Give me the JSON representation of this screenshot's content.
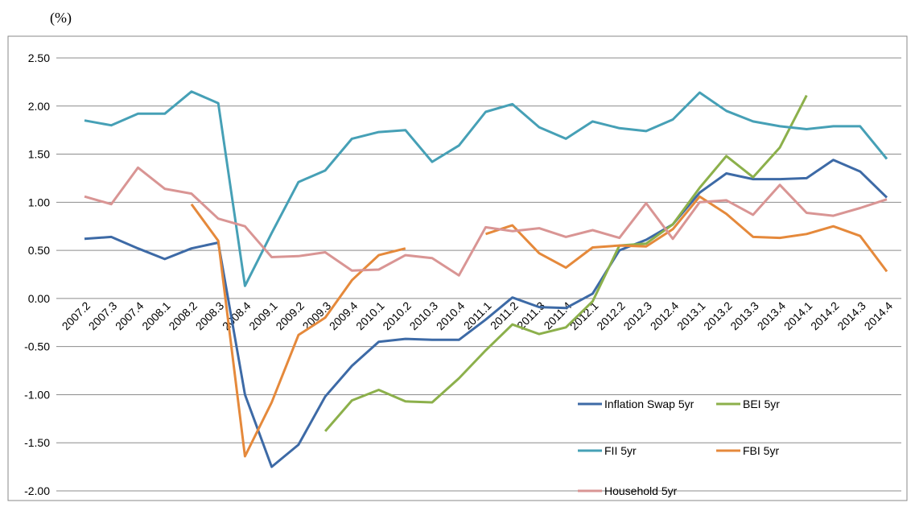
{
  "chart_data": {
    "type": "line",
    "title": "(%)",
    "categories": [
      "2007.2",
      "2007.3",
      "2007.4",
      "2008.1",
      "2008.2",
      "2008.3",
      "2008.4",
      "2009.1",
      "2009.2",
      "2009.3",
      "2009.4",
      "2010.1",
      "2010.2",
      "2010.3",
      "2010.4",
      "2011.1",
      "2011.2",
      "2011.3",
      "2011.4",
      "2012.1",
      "2012.2",
      "2012.3",
      "2012.4",
      "2013.1",
      "2013.2",
      "2013.3",
      "2013.4",
      "2014.1",
      "2014.2",
      "2014.3",
      "2014.4"
    ],
    "series": [
      {
        "name": "Inflation Swap 5yr",
        "color": "#3d6aa6",
        "values": [
          0.62,
          0.64,
          0.52,
          0.41,
          0.52,
          0.58,
          -1.0,
          -1.75,
          -1.52,
          -1.02,
          -0.7,
          -0.45,
          -0.42,
          -0.43,
          -0.43,
          -0.22,
          0.01,
          -0.09,
          -0.1,
          0.05,
          0.5,
          0.61,
          0.77,
          1.1,
          1.3,
          1.24,
          1.24,
          1.25,
          1.44,
          1.32,
          1.05
        ]
      },
      {
        "name": "BEI 5yr",
        "color": "#8cb04b",
        "values": [
          null,
          null,
          null,
          null,
          null,
          null,
          null,
          null,
          null,
          -1.38,
          -1.06,
          -0.95,
          -1.07,
          -1.08,
          -0.83,
          -0.54,
          -0.27,
          -0.37,
          -0.3,
          -0.03,
          0.55,
          0.57,
          0.77,
          1.15,
          1.48,
          1.26,
          1.57,
          2.11,
          null,
          null,
          null
        ]
      },
      {
        "name": "FII 5yr",
        "color": "#46a0b6",
        "values": [
          1.85,
          1.8,
          1.92,
          1.92,
          2.15,
          2.03,
          0.13,
          0.68,
          1.21,
          1.33,
          1.66,
          1.73,
          1.75,
          1.42,
          1.59,
          1.94,
          2.02,
          1.78,
          1.66,
          1.84,
          1.77,
          1.74,
          1.86,
          2.14,
          1.95,
          1.84,
          1.79,
          1.76,
          1.79,
          1.79,
          1.45
        ]
      },
      {
        "name": "FBI 5yr",
        "color": "#e5893b",
        "values": [
          null,
          null,
          null,
          null,
          0.98,
          0.6,
          -1.64,
          -1.08,
          -0.38,
          -0.2,
          0.19,
          0.45,
          0.52,
          null,
          null,
          0.67,
          0.76,
          0.47,
          0.32,
          0.53,
          0.55,
          0.54,
          0.72,
          1.06,
          0.88,
          0.64,
          0.63,
          0.67,
          0.75,
          0.65,
          0.28
        ]
      },
      {
        "name": "Household 5yr",
        "color": "#d99594",
        "values": [
          1.06,
          0.98,
          1.36,
          1.14,
          1.09,
          0.83,
          0.75,
          0.43,
          0.44,
          0.48,
          0.29,
          0.3,
          0.45,
          0.42,
          0.24,
          0.74,
          0.7,
          0.73,
          0.64,
          0.71,
          0.63,
          0.99,
          0.62,
          1.0,
          1.02,
          0.87,
          1.18,
          0.89,
          0.86,
          0.94,
          1.03
        ]
      }
    ],
    "ylim": [
      -2.0,
      2.5
    ],
    "yticks": [
      {
        "value": -2.0,
        "label": "-2.00"
      },
      {
        "value": -1.5,
        "label": "-1.50"
      },
      {
        "value": -1.0,
        "label": "-1.00"
      },
      {
        "value": -0.5,
        "label": "-0.50"
      },
      {
        "value": 0,
        "label": "0.00"
      },
      {
        "value": 0.5,
        "label": "0.50"
      },
      {
        "value": 1.0,
        "label": "1.00"
      },
      {
        "value": 1.5,
        "label": "1.50"
      },
      {
        "value": 2.0,
        "label": "2.00"
      },
      {
        "value": 2.5,
        "label": "2.50"
      }
    ],
    "grid": true
  }
}
